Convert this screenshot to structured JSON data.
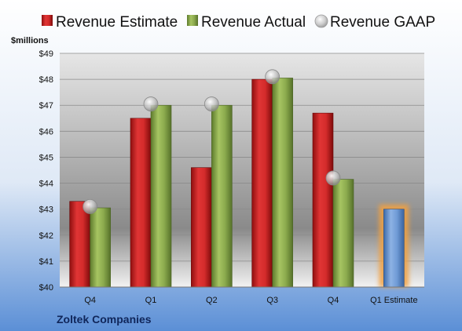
{
  "chart_data": {
    "type": "bar",
    "ylabel": "$millions",
    "ylim": [
      40,
      49
    ],
    "yticks": [
      "$40",
      "$41",
      "$42",
      "$43",
      "$44",
      "$45",
      "$46",
      "$47",
      "$48",
      "$49"
    ],
    "categories": [
      "Q4",
      "Q1",
      "Q2",
      "Q3",
      "Q4",
      "Q1 Estimate"
    ],
    "series": [
      {
        "name": "Revenue Estimate",
        "kind": "bar",
        "color": "#d42b2b",
        "values": [
          43.3,
          46.5,
          44.6,
          48.0,
          46.7,
          43.0
        ]
      },
      {
        "name": "Revenue Actual",
        "kind": "bar",
        "color": "#8cab4e",
        "values": [
          43.05,
          47.0,
          47.0,
          48.05,
          44.15,
          null
        ]
      },
      {
        "name": "Revenue GAAP",
        "kind": "marker",
        "color": "#c4c4c4",
        "values": [
          43.1,
          47.05,
          47.05,
          48.1,
          44.2,
          null
        ]
      }
    ],
    "highlight": {
      "category_index": 5,
      "color": "#6f9bd6",
      "glow": "#f2a040"
    },
    "legend_position": "top",
    "grid": true,
    "company": "Zoltek Companies"
  }
}
